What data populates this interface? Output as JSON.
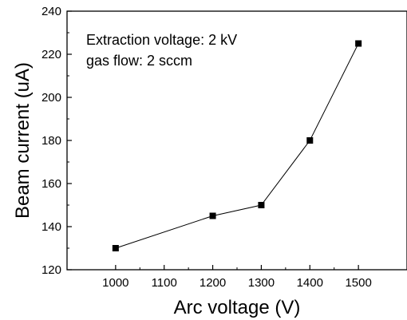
{
  "chart_data": {
    "type": "line",
    "title": "",
    "xlabel": "Arc voltage (V)",
    "ylabel": "Beam current (uA)",
    "xlim": [
      900,
      1600
    ],
    "ylim": [
      120,
      240
    ],
    "xticks": [
      1000,
      1100,
      1200,
      1300,
      1400,
      1500
    ],
    "yticks": [
      120,
      140,
      160,
      180,
      200,
      220,
      240
    ],
    "grid": false,
    "legend": "none",
    "marker": "square",
    "line_color": "#000000",
    "annotations": [
      "Extraction voltage: 2 kV",
      "gas flow: 2 sccm"
    ],
    "series": [
      {
        "x": [
          1000,
          1200,
          1300,
          1400,
          1500
        ],
        "y": [
          130,
          145,
          150,
          180,
          225
        ]
      }
    ]
  }
}
